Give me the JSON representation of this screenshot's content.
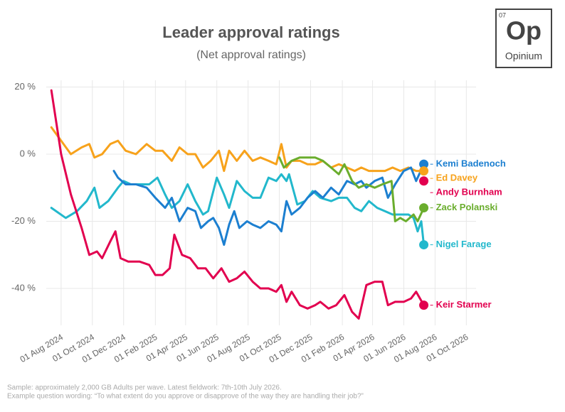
{
  "logo": {
    "number": "07",
    "mark": "Op",
    "name": "Opinium"
  },
  "chart_data": {
    "type": "line",
    "title": "Leader approval ratings",
    "subtitle": "(Net approval ratings)",
    "xlim": [
      "2024-07-03",
      "2026-10-20"
    ],
    "xticks": [
      {
        "value": "2024-08-01",
        "label": "01 Aug 2024"
      },
      {
        "value": "2024-10-01",
        "label": "01 Oct 2024"
      },
      {
        "value": "2024-12-01",
        "label": "01 Dec 2024"
      },
      {
        "value": "2025-02-01",
        "label": "01 Feb 2025"
      },
      {
        "value": "2025-04-01",
        "label": "01 Apr 2025"
      },
      {
        "value": "2025-06-01",
        "label": "01 Jun 2025"
      },
      {
        "value": "2025-08-01",
        "label": "01 Aug 2025"
      },
      {
        "value": "2025-10-01",
        "label": "01 Oct 2025"
      },
      {
        "value": "2025-12-01",
        "label": "01 Dec 2025"
      },
      {
        "value": "2026-02-01",
        "label": "01 Feb 2026"
      },
      {
        "value": "2026-04-01",
        "label": "01 Apr 2026"
      },
      {
        "value": "2026-06-01",
        "label": "01 Jun 2026"
      },
      {
        "value": "2026-08-01",
        "label": "01 Aug 2026"
      },
      {
        "value": "2026-10-01",
        "label": "01 Oct 2026"
      }
    ],
    "ylim": [
      -51,
      22
    ],
    "yticks": [
      {
        "value": 20,
        "label": "20 %"
      },
      {
        "value": 0,
        "label": "0 %"
      },
      {
        "value": -20,
        "label": "-20 %"
      },
      {
        "value": -40,
        "label": "-40 %"
      }
    ],
    "grid": true,
    "series": [
      {
        "name": "Ed Davey",
        "color": "#f7a21b",
        "x": [
          "2024-07-13",
          "2024-08-01",
          "2024-08-20",
          "2024-09-10",
          "2024-09-25",
          "2024-10-05",
          "2024-10-20",
          "2024-11-05",
          "2024-11-20",
          "2024-12-05",
          "2024-12-25",
          "2025-01-15",
          "2025-02-01",
          "2025-02-15",
          "2025-03-05",
          "2025-03-20",
          "2025-04-05",
          "2025-04-20",
          "2025-05-05",
          "2025-05-20",
          "2025-06-05",
          "2025-06-15",
          "2025-06-25",
          "2025-07-10",
          "2025-07-25",
          "2025-08-10",
          "2025-08-25",
          "2025-09-10",
          "2025-09-25",
          "2025-10-05",
          "2025-10-15",
          "2025-10-25",
          "2025-11-10",
          "2025-11-25",
          "2025-12-10",
          "2025-12-25",
          "2026-01-10",
          "2026-01-25",
          "2026-02-10",
          "2026-02-25",
          "2026-03-10",
          "2026-03-25",
          "2026-04-10",
          "2026-04-25",
          "2026-05-10",
          "2026-05-25",
          "2026-06-10",
          "2026-06-25",
          "2026-07-10"
        ],
        "values": [
          8,
          4,
          0,
          2,
          3,
          -1,
          0,
          3,
          4,
          1,
          0,
          3,
          1,
          1,
          -2,
          2,
          0,
          0,
          -4,
          -2,
          1,
          -5,
          1,
          -2,
          1,
          -2,
          -1,
          -2,
          -3,
          3,
          -4,
          -2,
          -2,
          -3,
          -3,
          -2,
          -4,
          -3,
          -4,
          -5,
          -4,
          -5,
          -5,
          -5,
          -4,
          -5,
          -4,
          -5,
          -5
        ]
      },
      {
        "name": "Nigel Farage",
        "color": "#22b8cc",
        "x": [
          "2024-07-13",
          "2024-08-10",
          "2024-09-01",
          "2024-09-20",
          "2024-10-05",
          "2024-10-15",
          "2024-11-01",
          "2024-11-20",
          "2024-12-01",
          "2024-12-15",
          "2025-01-01",
          "2025-01-20",
          "2025-02-05",
          "2025-02-20",
          "2025-03-05",
          "2025-03-20",
          "2025-04-05",
          "2025-04-20",
          "2025-05-05",
          "2025-05-15",
          "2025-06-01",
          "2025-06-15",
          "2025-06-25",
          "2025-07-10",
          "2025-07-25",
          "2025-08-10",
          "2025-08-25",
          "2025-09-10",
          "2025-09-25",
          "2025-10-05",
          "2025-10-15",
          "2025-10-20",
          "2025-11-05",
          "2025-11-20",
          "2025-12-05",
          "2025-12-20",
          "2026-01-10",
          "2026-01-25",
          "2026-02-10",
          "2026-02-25",
          "2026-03-10",
          "2026-03-25",
          "2026-04-10",
          "2026-04-25",
          "2026-05-10",
          "2026-05-25",
          "2026-06-10",
          "2026-06-20",
          "2026-06-28",
          "2026-07-05",
          "2026-07-10"
        ],
        "values": [
          -16,
          -19,
          -17,
          -14,
          -10,
          -16,
          -14,
          -10,
          -8,
          -9,
          -9,
          -9,
          -7,
          -12,
          -16,
          -14,
          -9,
          -14,
          -18,
          -17,
          -7,
          -12,
          -16,
          -8,
          -11,
          -13,
          -13,
          -7,
          -8,
          -6,
          -8,
          -6,
          -15,
          -14,
          -11,
          -13,
          -14,
          -13,
          -13,
          -16,
          -17,
          -14,
          -16,
          -17,
          -18,
          -18,
          -18,
          -19,
          -23,
          -20,
          -27
        ]
      },
      {
        "name": "Kemi Badenoch",
        "color": "#1c7fd0",
        "x": [
          "2024-11-12",
          "2024-11-20",
          "2024-12-05",
          "2024-12-25",
          "2025-01-15",
          "2025-02-01",
          "2025-02-20",
          "2025-03-05",
          "2025-03-20",
          "2025-04-05",
          "2025-04-20",
          "2025-05-01",
          "2025-05-15",
          "2025-05-25",
          "2025-06-05",
          "2025-06-15",
          "2025-06-25",
          "2025-07-05",
          "2025-07-15",
          "2025-07-30",
          "2025-08-10",
          "2025-08-25",
          "2025-09-10",
          "2025-09-25",
          "2025-10-05",
          "2025-10-15",
          "2025-10-25",
          "2025-11-10",
          "2025-11-25",
          "2025-12-10",
          "2025-12-25",
          "2026-01-10",
          "2026-01-25",
          "2026-02-10",
          "2026-02-25",
          "2026-03-10",
          "2026-03-20",
          "2026-04-05",
          "2026-04-20",
          "2026-05-01",
          "2026-05-15",
          "2026-06-01",
          "2026-06-15",
          "2026-06-25",
          "2026-07-10"
        ],
        "values": [
          -5,
          -7,
          -9,
          -9,
          -10,
          -13,
          -16,
          -13,
          -20,
          -16,
          -17,
          -22,
          -20,
          -19,
          -22,
          -27,
          -21,
          -17,
          -22,
          -20,
          -21,
          -22,
          -20,
          -21,
          -23,
          -14,
          -18,
          -16,
          -13,
          -11,
          -13,
          -10,
          -12,
          -8,
          -9,
          -8,
          -10,
          -8,
          -7,
          -13,
          -9,
          -5,
          -4,
          -8,
          -3
        ]
      },
      {
        "name": "Zack Polanski",
        "color": "#6aad2d",
        "x": [
          "2025-10-01",
          "2025-10-10",
          "2025-10-25",
          "2025-11-10",
          "2025-11-25",
          "2025-12-10",
          "2025-12-25",
          "2026-01-10",
          "2026-01-25",
          "2026-02-05",
          "2026-02-20",
          "2026-03-05",
          "2026-03-20",
          "2026-04-05",
          "2026-04-20",
          "2026-05-08",
          "2026-05-15",
          "2026-05-25",
          "2026-06-05",
          "2026-06-20",
          "2026-06-28",
          "2026-07-10"
        ],
        "values": [
          -1,
          -4,
          -2,
          -1,
          -1,
          -1,
          -2,
          -4,
          -6,
          -3,
          -8,
          -10,
          -9,
          -10,
          -9,
          -8,
          -20,
          -19,
          -20,
          -18,
          -20,
          -16
        ]
      },
      {
        "name": "Keir Starmer",
        "color": "#e2004f",
        "x": [
          "2024-07-13",
          "2024-08-01",
          "2024-08-20",
          "2024-09-10",
          "2024-09-25",
          "2024-10-10",
          "2024-10-20",
          "2024-11-05",
          "2024-11-15",
          "2024-11-25",
          "2024-12-10",
          "2025-01-01",
          "2025-01-20",
          "2025-02-01",
          "2025-02-15",
          "2025-03-01",
          "2025-03-10",
          "2025-03-25",
          "2025-04-10",
          "2025-04-25",
          "2025-05-10",
          "2025-05-25",
          "2025-06-10",
          "2025-06-25",
          "2025-07-10",
          "2025-07-25",
          "2025-08-10",
          "2025-08-25",
          "2025-09-10",
          "2025-09-25",
          "2025-10-05",
          "2025-10-15",
          "2025-10-25",
          "2025-11-10",
          "2025-11-25",
          "2025-12-10",
          "2025-12-20",
          "2026-01-05",
          "2026-01-20",
          "2026-02-05",
          "2026-02-20",
          "2026-03-05",
          "2026-03-20",
          "2026-04-05",
          "2026-04-20",
          "2026-05-01",
          "2026-05-15",
          "2026-06-01",
          "2026-06-15",
          "2026-06-25",
          "2026-07-10"
        ],
        "values": [
          19,
          0,
          -12,
          -22,
          -30,
          -29,
          -31,
          -26,
          -23,
          -31,
          -32,
          -32,
          -33,
          -36,
          -36,
          -34,
          -24,
          -30,
          -31,
          -34,
          -34,
          -37,
          -34,
          -38,
          -37,
          -35,
          -38,
          -40,
          -40,
          -41,
          -39,
          -44,
          -41,
          -45,
          -46,
          -45,
          -44,
          -46,
          -45,
          -42,
          -47,
          -49,
          -39,
          -38,
          -38,
          -45,
          -44,
          -44,
          -43,
          -41,
          -45
        ]
      },
      {
        "name": "Andy Burnham",
        "color": "#e2004f",
        "x": [
          "2026-07-10"
        ],
        "values": [
          -8
        ]
      }
    ],
    "footnote": [
      "Sample: approximately 2,000 GB Adults per wave. Latest fieldwork: 7th-10th July 2026.",
      "Example question wording: “To what extent do you approve or disapprove of the way they are handling their job?”"
    ]
  }
}
